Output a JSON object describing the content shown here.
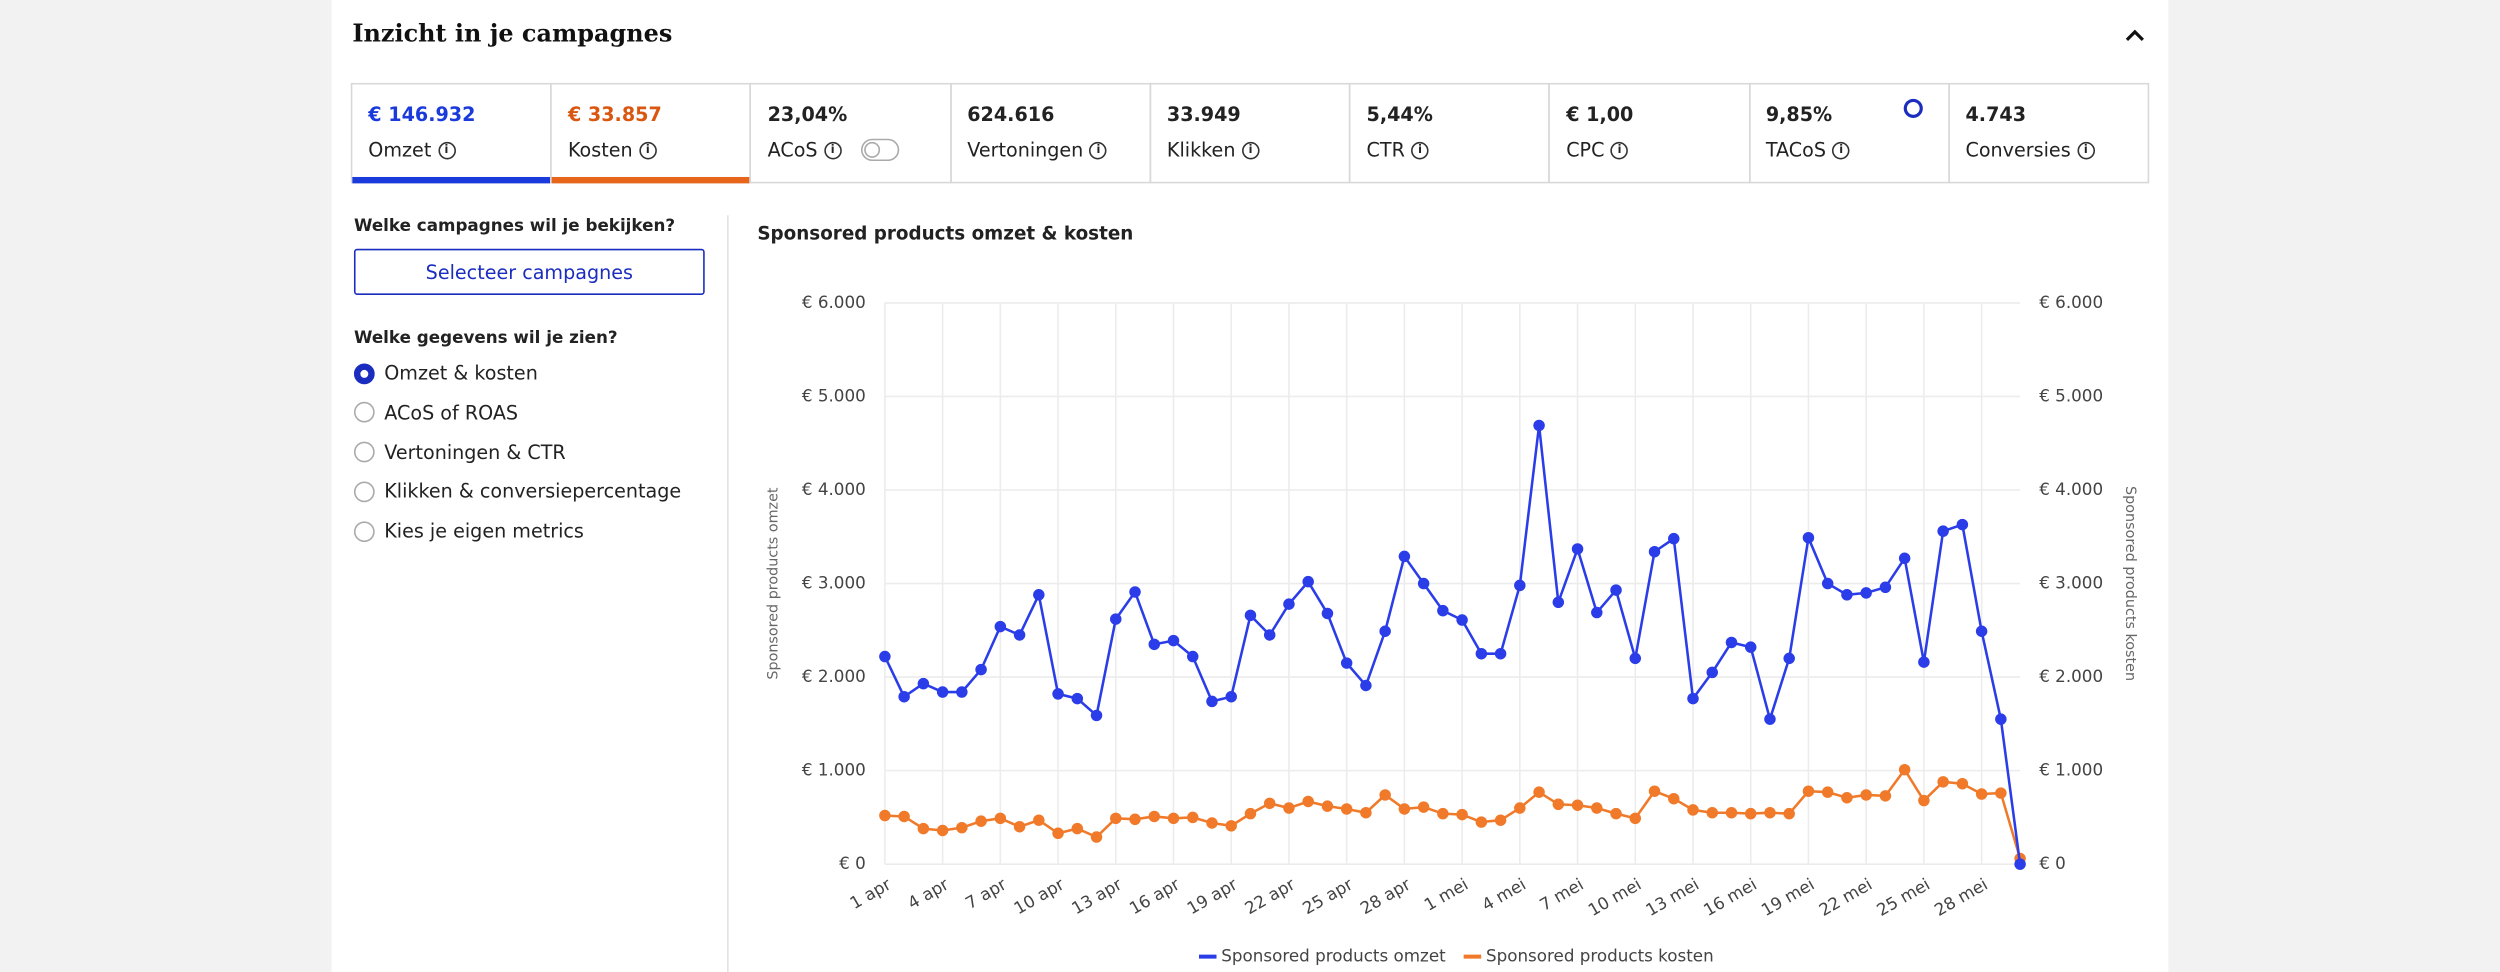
{
  "header": {
    "title": "Inzicht in je campagnes"
  },
  "metrics": [
    {
      "value": "€ 146.932",
      "label": "Omzet"
    },
    {
      "value": "€ 33.857",
      "label": "Kosten"
    },
    {
      "value": "23,04%",
      "label": "ACoS"
    },
    {
      "value": "624.616",
      "label": "Vertoningen"
    },
    {
      "value": "33.949",
      "label": "Klikken"
    },
    {
      "value": "5,44%",
      "label": "CTR"
    },
    {
      "value": "€ 1,00",
      "label": "CPC"
    },
    {
      "value": "9,85%",
      "label": "TACoS"
    },
    {
      "value": "4.743",
      "label": "Conversies"
    }
  ],
  "sidebar": {
    "campaigns_question": "Welke campagnes wil je bekijken?",
    "button": "Selecteer campagnes",
    "data_question": "Welke gegevens wil je zien?",
    "options": [
      "Omzet & kosten",
      "ACoS of ROAS",
      "Vertoningen & CTR",
      "Klikken & conversiepercentage",
      "Kies je eigen metrics"
    ]
  },
  "chart_data": {
    "type": "line",
    "title": "Sponsored products omzet & kosten",
    "y_label": "Sponsored products omzet",
    "y2_label": "Sponsored products kosten",
    "categories": [
      "1 apr",
      null,
      null,
      "4 apr",
      null,
      null,
      "7 apr",
      null,
      null,
      "10 apr",
      null,
      null,
      "13 apr",
      null,
      null,
      "16 apr",
      null,
      null,
      "19 apr",
      null,
      null,
      "22 apr",
      null,
      null,
      "25 apr",
      null,
      null,
      "28 apr",
      null,
      null,
      "1 mei",
      null,
      null,
      "4 mei",
      null,
      null,
      "7 mei",
      null,
      null,
      "10 mei",
      null,
      null,
      "13 mei",
      null,
      null,
      "16 mei",
      null,
      null,
      "19 mei",
      null,
      null,
      "22 mei",
      null,
      null,
      "25 mei",
      null,
      null,
      "28 mei",
      null,
      null
    ],
    "series": [
      {
        "name": "Sponsored products omzet",
        "color": "#2a3de8",
        "axis": "y",
        "values": [
          2220,
          1790,
          1930,
          1840,
          1840,
          2080,
          2540,
          2450,
          2880,
          1820,
          1770,
          1590,
          2620,
          2910,
          2350,
          2390,
          2220,
          1740,
          1790,
          2660,
          2450,
          2780,
          3020,
          2680,
          2150,
          1910,
          2490,
          3290,
          3000,
          2710,
          2610,
          2250,
          2250,
          2980,
          4690,
          2800,
          3370,
          2690,
          2930,
          2200,
          3340,
          3480,
          1770,
          2050,
          2370,
          2320,
          1550,
          2200,
          3490,
          3000,
          2880,
          2900,
          2960,
          3270,
          2160,
          3560,
          3630,
          2490,
          1550,
          0
        ]
      },
      {
        "name": "Sponsored products kosten",
        "color": "#f07a2a",
        "axis": "y2",
        "values": [
          520,
          510,
          380,
          360,
          390,
          460,
          490,
          400,
          470,
          330,
          380,
          290,
          490,
          480,
          510,
          490,
          500,
          440,
          410,
          540,
          650,
          600,
          670,
          620,
          590,
          550,
          740,
          590,
          610,
          540,
          530,
          450,
          470,
          600,
          770,
          640,
          630,
          600,
          540,
          490,
          780,
          700,
          580,
          550,
          550,
          540,
          550,
          540,
          780,
          770,
          710,
          740,
          730,
          1010,
          680,
          880,
          860,
          750,
          760,
          60
        ]
      }
    ],
    "ylim": [
      0,
      6000
    ],
    "yticks": [
      {
        "value": 0,
        "label": "€ 0"
      },
      {
        "value": 1000,
        "label": "€ 1.000"
      },
      {
        "value": 2000,
        "label": "€ 2.000"
      },
      {
        "value": 3000,
        "label": "€ 3.000"
      },
      {
        "value": 4000,
        "label": "€ 4.000"
      },
      {
        "value": 5000,
        "label": "€ 5.000"
      },
      {
        "value": 6000,
        "label": "€ 6.000"
      }
    ],
    "y2lim": [
      0,
      6000
    ],
    "y2ticks": [
      {
        "value": 0,
        "label": "€ 0"
      },
      {
        "value": 1000,
        "label": "€ 1.000"
      },
      {
        "value": 2000,
        "label": "€ 2.000"
      },
      {
        "value": 3000,
        "label": "€ 3.000"
      },
      {
        "value": 4000,
        "label": "€ 4.000"
      },
      {
        "value": 5000,
        "label": "€ 5.000"
      },
      {
        "value": 6000,
        "label": "€ 6.000"
      }
    ],
    "grid": true
  }
}
